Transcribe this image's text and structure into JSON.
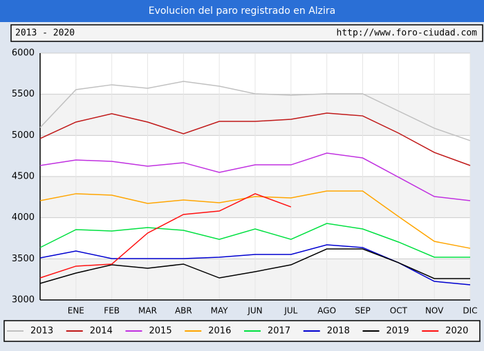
{
  "chart_data": {
    "type": "line",
    "title": "Evolucion del paro registrado en Alzira",
    "subtitle": "2013 - 2020",
    "source": "http://www.foro-ciudad.com",
    "categories": [
      null,
      "ENE",
      "FEB",
      "MAR",
      "ABR",
      "MAY",
      "JUN",
      "JUL",
      "AGO",
      "SEP",
      "OCT",
      "NOV",
      "DIC"
    ],
    "ylim": [
      3000,
      6000
    ],
    "yticks": [
      3000,
      3500,
      4000,
      4500,
      5000,
      5500,
      6000
    ],
    "grid": true,
    "legend": "bottom",
    "series": [
      {
        "name": "2013",
        "color": "#c0c0c0",
        "values": [
          5095,
          5556,
          5615,
          5573,
          5656,
          5598,
          5506,
          5489,
          5506,
          5506,
          5296,
          5087,
          4936
        ]
      },
      {
        "name": "2014",
        "color": "#c01818",
        "values": [
          4961,
          5162,
          5263,
          5162,
          5020,
          5170,
          5170,
          5196,
          5271,
          5237,
          5028,
          4793,
          4634
        ]
      },
      {
        "name": "2015",
        "color": "#c030e0",
        "values": [
          4634,
          4701,
          4684,
          4626,
          4668,
          4550,
          4642,
          4642,
          4785,
          4726,
          4492,
          4257,
          4207
        ]
      },
      {
        "name": "2016",
        "color": "#ffa500",
        "values": [
          4207,
          4291,
          4274,
          4173,
          4215,
          4182,
          4257,
          4240,
          4324,
          4324,
          4014,
          3712,
          3628
        ]
      },
      {
        "name": "2017",
        "color": "#00e040",
        "values": [
          3637,
          3855,
          3838,
          3880,
          3846,
          3737,
          3863,
          3737,
          3930,
          3863,
          3704,
          3520,
          3520
        ]
      },
      {
        "name": "2018",
        "color": "#0000d0",
        "values": [
          3511,
          3595,
          3503,
          3503,
          3503,
          3520,
          3553,
          3553,
          3670,
          3637,
          3453,
          3226,
          3184
        ]
      },
      {
        "name": "2019",
        "color": "#000000",
        "values": [
          3201,
          3327,
          3427,
          3385,
          3436,
          3268,
          3344,
          3427,
          3620,
          3620,
          3453,
          3260,
          3260
        ]
      },
      {
        "name": "2020",
        "color": "#ff1010",
        "values": [
          3268,
          3411,
          3436,
          3813,
          4039,
          4081,
          4291,
          4131,
          null,
          null,
          null,
          null,
          null
        ]
      }
    ]
  }
}
